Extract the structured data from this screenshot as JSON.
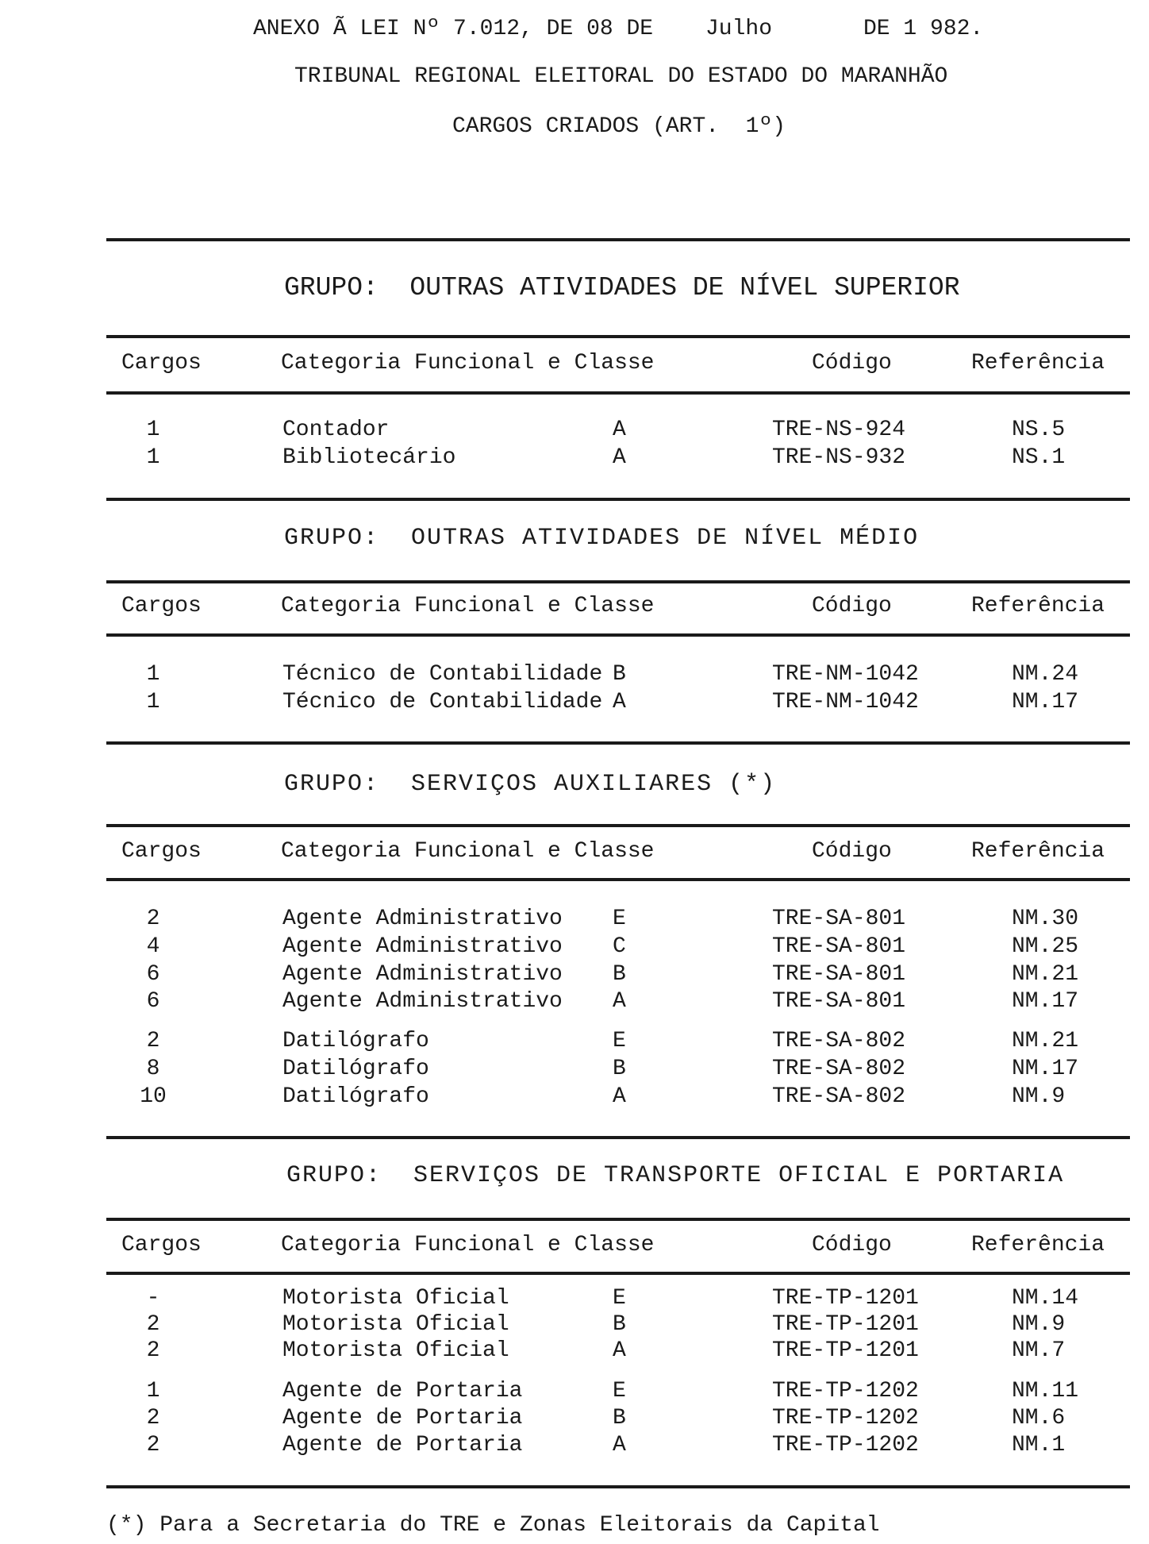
{
  "header": {
    "line1_a": "ANEXO Ã LEI Nº 7.012, DE 08 DE",
    "line1_month": "Julho",
    "line1_year": "DE 1 982.",
    "line2": "TRIBUNAL REGIONAL ELEITORAL DO ESTADO DO MARANHÃO",
    "line3": "CARGOS CRIADOS (ART.  1º)"
  },
  "columns": {
    "cargos": "Cargos",
    "categoria": "Categoria Funcional e Classe",
    "codigo": "Código",
    "referencia": "Referência"
  },
  "groups": [
    {
      "title": "GRUPO:  OUTRAS ATIVIDADES DE NÍVEL SUPERIOR",
      "rows": [
        {
          "cargos": "1",
          "categoria": "Contador",
          "classe": "A",
          "codigo": "TRE-NS-924",
          "referencia": "NS.5"
        },
        {
          "cargos": "1",
          "categoria": "Bibliotecário",
          "classe": "A",
          "codigo": "TRE-NS-932",
          "referencia": "NS.1"
        }
      ]
    },
    {
      "title": "GRUPO:  OUTRAS ATIVIDADES DE NÍVEL MÉDIO",
      "rows": [
        {
          "cargos": "1",
          "categoria": "Técnico de Contabilidade",
          "classe": "B",
          "codigo": "TRE-NM-1042",
          "referencia": "NM.24"
        },
        {
          "cargos": "1",
          "categoria": "Técnico de Contabilidade",
          "classe": "A",
          "codigo": "TRE-NM-1042",
          "referencia": "NM.17"
        }
      ]
    },
    {
      "title": "GRUPO:  SERVIÇOS AUXILIARES (*)",
      "rows": [
        {
          "cargos": "2",
          "categoria": "Agente Administrativo",
          "classe": "E",
          "codigo": "TRE-SA-801",
          "referencia": "NM.30"
        },
        {
          "cargos": "4",
          "categoria": "Agente Administrativo",
          "classe": "C",
          "codigo": "TRE-SA-801",
          "referencia": "NM.25"
        },
        {
          "cargos": "6",
          "categoria": "Agente Administrativo",
          "classe": "B",
          "codigo": "TRE-SA-801",
          "referencia": "NM.21"
        },
        {
          "cargos": "6",
          "categoria": "Agente Administrativo",
          "classe": "A",
          "codigo": "TRE-SA-801",
          "referencia": "NM.17"
        },
        {
          "cargos": "2",
          "categoria": "Datilógrafo",
          "classe": "E",
          "codigo": "TRE-SA-802",
          "referencia": "NM.21"
        },
        {
          "cargos": "8",
          "categoria": "Datilógrafo",
          "classe": "B",
          "codigo": "TRE-SA-802",
          "referencia": "NM.17"
        },
        {
          "cargos": "10",
          "categoria": "Datilógrafo",
          "classe": "A",
          "codigo": "TRE-SA-802",
          "referencia": "NM.9"
        }
      ]
    },
    {
      "title": "GRUPO:  SERVIÇOS DE TRANSPORTE OFICIAL E PORTARIA",
      "rows": [
        {
          "cargos": "-",
          "categoria": "Motorista Oficial",
          "classe": "E",
          "codigo": "TRE-TP-1201",
          "referencia": "NM.14"
        },
        {
          "cargos": "2",
          "categoria": "Motorista Oficial",
          "classe": "B",
          "codigo": "TRE-TP-1201",
          "referencia": "NM.9"
        },
        {
          "cargos": "2",
          "categoria": "Motorista Oficial",
          "classe": "A",
          "codigo": "TRE-TP-1201",
          "referencia": "NM.7"
        },
        {
          "cargos": "1",
          "categoria": "Agente de Portaria",
          "classe": "E",
          "codigo": "TRE-TP-1202",
          "referencia": "NM.11"
        },
        {
          "cargos": "2",
          "categoria": "Agente de Portaria",
          "classe": "B",
          "codigo": "TRE-TP-1202",
          "referencia": "NM.6"
        },
        {
          "cargos": "2",
          "categoria": "Agente de Portaria",
          "classe": "A",
          "codigo": "TRE-TP-1202",
          "referencia": "NM.1"
        }
      ]
    }
  ],
  "footnote": "(*) Para a Secretaria do TRE e Zonas Eleitorais da Capital"
}
